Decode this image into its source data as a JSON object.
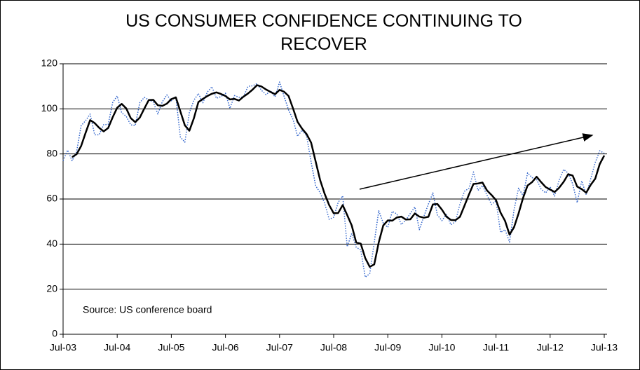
{
  "chart_data": {
    "type": "line",
    "title": "US CONSUMER CONFIDENCE CONTINUING TO RECOVER",
    "annotation": "Source: US conference board",
    "x": [
      "2003-07",
      "2003-08",
      "2003-09",
      "2003-10",
      "2003-11",
      "2003-12",
      "2004-01",
      "2004-02",
      "2004-03",
      "2004-04",
      "2004-05",
      "2004-06",
      "2004-07",
      "2004-08",
      "2004-09",
      "2004-10",
      "2004-11",
      "2004-12",
      "2005-01",
      "2005-02",
      "2005-03",
      "2005-04",
      "2005-05",
      "2005-06",
      "2005-07",
      "2005-08",
      "2005-09",
      "2005-10",
      "2005-11",
      "2005-12",
      "2006-01",
      "2006-02",
      "2006-03",
      "2006-04",
      "2006-05",
      "2006-06",
      "2006-07",
      "2006-08",
      "2006-09",
      "2006-10",
      "2006-11",
      "2006-12",
      "2007-01",
      "2007-02",
      "2007-03",
      "2007-04",
      "2007-05",
      "2007-06",
      "2007-07",
      "2007-08",
      "2007-09",
      "2007-10",
      "2007-11",
      "2007-12",
      "2008-01",
      "2008-02",
      "2008-03",
      "2008-04",
      "2008-05",
      "2008-06",
      "2008-07",
      "2008-08",
      "2008-09",
      "2008-10",
      "2008-11",
      "2008-12",
      "2009-01",
      "2009-02",
      "2009-03",
      "2009-04",
      "2009-05",
      "2009-06",
      "2009-07",
      "2009-08",
      "2009-09",
      "2009-10",
      "2009-11",
      "2009-12",
      "2010-01",
      "2010-02",
      "2010-03",
      "2010-04",
      "2010-05",
      "2010-06",
      "2010-07",
      "2010-08",
      "2010-09",
      "2010-10",
      "2010-11",
      "2010-12",
      "2011-01",
      "2011-02",
      "2011-03",
      "2011-04",
      "2011-05",
      "2011-06",
      "2011-07",
      "2011-08",
      "2011-09",
      "2011-10",
      "2011-11",
      "2011-12",
      "2012-01",
      "2012-02",
      "2012-03",
      "2012-04",
      "2012-05",
      "2012-06",
      "2012-07",
      "2012-08",
      "2012-09",
      "2012-10",
      "2012-11",
      "2012-12",
      "2013-01",
      "2013-02",
      "2013-03",
      "2013-04",
      "2013-05",
      "2013-06",
      "2013-07"
    ],
    "series": [
      {
        "color": "#3366cc",
        "style": "dotted",
        "values": [
          77,
          81.7,
          77,
          81,
          92.5,
          94.8,
          97.7,
          88.5,
          88.5,
          93,
          93.1,
          102.8,
          105.7,
          98.2,
          96.7,
          92.9,
          92.6,
          102.7,
          105.1,
          104,
          103,
          97.7,
          103.1,
          106.2,
          103.6,
          105.5,
          87.5,
          85.2,
          98.3,
          103.8,
          106.8,
          102.7,
          107.5,
          109.8,
          104.7,
          105.4,
          107,
          100.2,
          105.9,
          105.1,
          105.3,
          110,
          110.2,
          111.2,
          108.2,
          106.3,
          108,
          105.3,
          111.9,
          105.6,
          99.5,
          95.2,
          87.8,
          90.6,
          87.9,
          76.4,
          65.9,
          62.8,
          58.1,
          51,
          51.9,
          58.5,
          61.4,
          38.8,
          44.7,
          38.6,
          37.4,
          25.3,
          26.9,
          40.8,
          54.8,
          49.3,
          47.4,
          54.5,
          53.4,
          48.7,
          50.6,
          53.6,
          56.5,
          46.4,
          52.3,
          57.7,
          62.7,
          52.9,
          50.4,
          53.2,
          48.6,
          49.9,
          57.8,
          63.4,
          64.8,
          72,
          63.8,
          66,
          61.7,
          57.6,
          59.2,
          45.2,
          46.4,
          40.9,
          55.2,
          64.8,
          61.5,
          71.6,
          69.5,
          68.7,
          64.4,
          62.7,
          65.4,
          61.3,
          68.4,
          73.1,
          71.5,
          66.7,
          58.4,
          68,
          61.9,
          69,
          76.2,
          81.4,
          80.3
        ]
      },
      {
        "color": "#000000",
        "style": "solid",
        "values": [
          null,
          null,
          78.6,
          79.9,
          83.5,
          89.4,
          95,
          93.7,
          91.6,
          90,
          91.5,
          96.3,
          100.5,
          102.2,
          100.2,
          95.9,
          94.1,
          96.1,
          100.1,
          103.9,
          104,
          101.6,
          101.3,
          102.3,
          104.3,
          105.1,
          98.9,
          92.7,
          90.3,
          95.8,
          103,
          104.4,
          105.7,
          106.7,
          107.3,
          106.6,
          105.7,
          104.2,
          104.4,
          103.7,
          105.4,
          106.8,
          108.5,
          110.5,
          109.9,
          108.6,
          107.5,
          106.5,
          108.4,
          107.6,
          105.7,
          100.1,
          94.2,
          91.2,
          88.8,
          85,
          76.7,
          68.4,
          62.3,
          57.3,
          53.7,
          53.8,
          57.3,
          52.9,
          48.3,
          40.7,
          40.2,
          33.8,
          29.9,
          31,
          40.8,
          48.3,
          50.5,
          50.4,
          51.8,
          52.2,
          50.9,
          51,
          53.6,
          52.2,
          51.7,
          52.1,
          57.6,
          57.8,
          55.3,
          52.2,
          50.7,
          50.6,
          52.1,
          57,
          62,
          66.7,
          66.9,
          67.3,
          63.8,
          61.8,
          59.5,
          54,
          50.3,
          44.2,
          47.5,
          53.6,
          60.5,
          66,
          67.5,
          69.9,
          67.5,
          65.3,
          64.2,
          63.1,
          65,
          67.6,
          71,
          70.4,
          65.5,
          64.4,
          62.8,
          66.3,
          69,
          75.5,
          79.3
        ]
      }
    ],
    "xlim": [
      "2003-07",
      "2013-07"
    ],
    "xticks": [
      {
        "value": "2003-07",
        "label": "Jul-03"
      },
      {
        "value": "2004-07",
        "label": "Jul-04"
      },
      {
        "value": "2005-07",
        "label": "Jul-05"
      },
      {
        "value": "2006-07",
        "label": "Jul-06"
      },
      {
        "value": "2007-07",
        "label": "Jul-07"
      },
      {
        "value": "2008-07",
        "label": "Jul-08"
      },
      {
        "value": "2009-07",
        "label": "Jul-09"
      },
      {
        "value": "2010-07",
        "label": "Jul-10"
      },
      {
        "value": "2011-07",
        "label": "Jul-11"
      },
      {
        "value": "2012-07",
        "label": "Jul-12"
      },
      {
        "value": "2013-07",
        "label": "Jul-13"
      }
    ],
    "ylim": [
      0,
      120
    ],
    "yticks": [
      0,
      20,
      40,
      60,
      80,
      100,
      120
    ],
    "grid": true
  }
}
